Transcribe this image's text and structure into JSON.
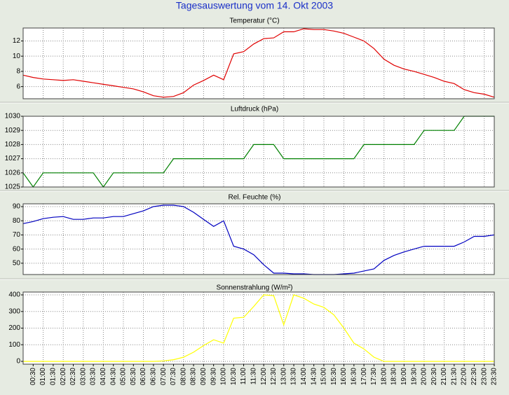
{
  "title": "Tagesauswertung vom 14. Okt 2003",
  "chart_data": [
    {
      "type": "line",
      "title": "Temperatur (°C)",
      "color": "#e00000",
      "grid": true,
      "ylim": [
        4.4,
        13.7
      ],
      "yticks": [
        6,
        8,
        10,
        12
      ],
      "values": [
        7.5,
        7.2,
        7.0,
        6.9,
        6.8,
        6.9,
        6.7,
        6.5,
        6.3,
        6.1,
        5.9,
        5.7,
        5.3,
        4.8,
        4.6,
        4.7,
        5.2,
        6.2,
        6.8,
        7.5,
        6.9,
        10.3,
        10.6,
        11.6,
        12.3,
        12.4,
        13.2,
        13.2,
        13.6,
        13.5,
        13.5,
        13.3,
        13.0,
        12.5,
        12.0,
        11.0,
        9.6,
        8.8,
        8.3,
        8.0,
        7.6,
        7.2,
        6.7,
        6.4,
        5.6,
        5.2,
        5.0,
        4.6
      ]
    },
    {
      "type": "line",
      "title": "Luftdruck (hPa)",
      "color": "#008000",
      "grid": true,
      "ylim": [
        1025,
        1030
      ],
      "yticks": [
        1025,
        1026,
        1027,
        1028,
        1029,
        1030
      ],
      "values": [
        1026,
        1025,
        1026,
        1026,
        1026,
        1026,
        1026,
        1026,
        1025,
        1026,
        1026,
        1026,
        1026,
        1026,
        1026,
        1027,
        1027,
        1027,
        1027,
        1027,
        1027,
        1027,
        1027,
        1028,
        1028,
        1028,
        1027,
        1027,
        1027,
        1027,
        1027,
        1027,
        1027,
        1027,
        1028,
        1028,
        1028,
        1028,
        1028,
        1028,
        1029,
        1029,
        1029,
        1029,
        1030,
        1030,
        1030,
        1030
      ]
    },
    {
      "type": "line",
      "title": "Rel. Feuchte (%)",
      "color": "#0000c0",
      "grid": true,
      "ylim": [
        42,
        92
      ],
      "yticks": [
        50,
        60,
        70,
        80,
        90
      ],
      "values": [
        78,
        79.5,
        81.5,
        82.5,
        83,
        81,
        81,
        82,
        82,
        83,
        83,
        85,
        87,
        90,
        91,
        91,
        90,
        86,
        81,
        76,
        80,
        62,
        60,
        56,
        49,
        43,
        43,
        42.5,
        42.5,
        42,
        42,
        42,
        42.5,
        43,
        44.5,
        46,
        52,
        55.5,
        58,
        60,
        62,
        62,
        62,
        62,
        65,
        69,
        69,
        70
      ]
    },
    {
      "type": "line",
      "title": "Sonnenstrahlung (W/m²)",
      "color": "#ffff00",
      "grid": true,
      "ylim": [
        -17,
        417
      ],
      "yticks": [
        0,
        100,
        200,
        300,
        400
      ],
      "values": [
        0,
        0,
        0,
        0,
        0,
        0,
        0,
        0,
        0,
        0,
        0,
        0,
        0,
        0,
        3,
        10,
        25,
        55,
        95,
        130,
        110,
        260,
        265,
        330,
        400,
        395,
        220,
        400,
        380,
        345,
        325,
        280,
        200,
        110,
        75,
        25,
        0,
        0,
        0,
        0,
        0,
        0,
        0,
        0,
        0,
        0,
        0,
        0
      ],
      "categories": [
        null,
        "00:30",
        "01:00",
        "01:30",
        "02:00",
        "02:30",
        "03:00",
        "03:30",
        "04:00",
        "04:30",
        "05:00",
        "05:30",
        "06:00",
        "06:30",
        "07:00",
        "07:30",
        "08:00",
        "08:30",
        "09:00",
        "09:30",
        "10:00",
        "10:30",
        "11:00",
        "11:30",
        "12:00",
        "12:30",
        "13:00",
        "13:30",
        "14:00",
        "14:30",
        "15:00",
        "15:30",
        "16:00",
        "16:30",
        "17:00",
        "17:30",
        "18:00",
        "18:30",
        "19:00",
        "19:30",
        "20:00",
        "20:30",
        "21:00",
        "21:30",
        "22:00",
        "22:30",
        "23:00",
        "23:30"
      ]
    }
  ]
}
